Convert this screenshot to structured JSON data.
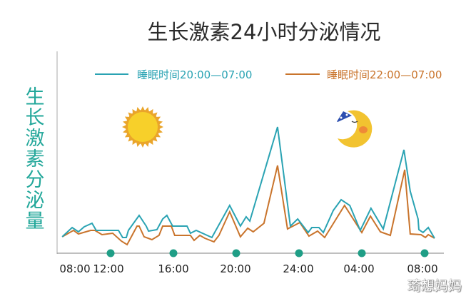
{
  "chart_data": {
    "type": "line",
    "title": "生长激素24小时分泌情况",
    "ylabel": "生长激素分泌量",
    "xlabel": "",
    "x_ticks": [
      "08:00",
      "12:00",
      "16:00",
      "20:00",
      "24:00",
      "04:00",
      "08:00"
    ],
    "grid": false,
    "legend_placement": "top",
    "y_units": "relative (no scale printed)",
    "series": [
      {
        "name": "睡眠时间20:00—07:00",
        "color": "#2aa3b3",
        "x": [
          "08:55",
          "09:33",
          "09:57",
          "10:19",
          "10:49",
          "11:05",
          "12:30",
          "12:46",
          "13:00",
          "13:08",
          "13:49",
          "14:16",
          "14:25",
          "14:57",
          "15:19",
          "15:35",
          "15:57",
          "16:52",
          "17:05",
          "17:27",
          "18:27",
          "19:35",
          "20:16",
          "20:38",
          "20:52",
          "22:38",
          "23:27",
          "23:55",
          "00:35",
          "00:49",
          "01:16",
          "01:33",
          "02:11",
          "02:41",
          "03:14",
          "03:54",
          "04:35",
          "05:22",
          "06:41",
          "07:05",
          "07:35",
          "07:38",
          "07:54",
          "08:14",
          "08:38"
        ],
        "values": [
          23,
          36,
          30,
          37,
          42,
          32,
          32,
          22,
          22,
          32,
          53,
          38,
          31,
          33,
          48,
          53,
          38,
          38,
          28,
          32,
          22,
          67,
          38,
          51,
          45,
          177,
          38,
          48,
          29,
          36,
          36,
          29,
          60,
          75,
          67,
          32,
          63,
          34,
          145,
          87,
          48,
          33,
          29,
          36,
          21
        ]
      },
      {
        "name": "睡眠时间22:00—07:00",
        "color": "#c9742c",
        "x": [
          "08:55",
          "09:38",
          "09:57",
          "10:44",
          "11:00",
          "11:27",
          "12:08",
          "12:41",
          "13:03",
          "13:41",
          "13:49",
          "14:08",
          "14:38",
          "15:05",
          "15:19",
          "15:52",
          "16:05",
          "17:05",
          "17:19",
          "17:41",
          "18:00",
          "18:35",
          "18:54",
          "19:35",
          "20:16",
          "20:44",
          "21:05",
          "21:46",
          "22:38",
          "23:16",
          "00:03",
          "00:38",
          "01:11",
          "01:38",
          "02:54",
          "04:00",
          "04:33",
          "05:11",
          "05:49",
          "06:44",
          "07:05",
          "07:46",
          "08:03",
          "08:14",
          "08:38"
        ],
        "values": [
          23,
          32,
          27,
          32,
          32,
          26,
          28,
          17,
          12,
          38,
          38,
          23,
          19,
          25,
          38,
          38,
          25,
          25,
          18,
          25,
          21,
          16,
          25,
          58,
          23,
          35,
          30,
          42,
          123,
          34,
          43,
          24,
          31,
          22,
          67,
          29,
          52,
          30,
          25,
          117,
          27,
          26,
          22,
          26,
          21
        ]
      }
    ],
    "markers": [
      {
        "name": "sun-icon",
        "period": "day"
      },
      {
        "name": "sleeping-moon-icon",
        "period": "night"
      }
    ],
    "tick_dot_color": "#1f9e86",
    "axis_color": "#999999"
  },
  "watermark": "琦想妈妈"
}
